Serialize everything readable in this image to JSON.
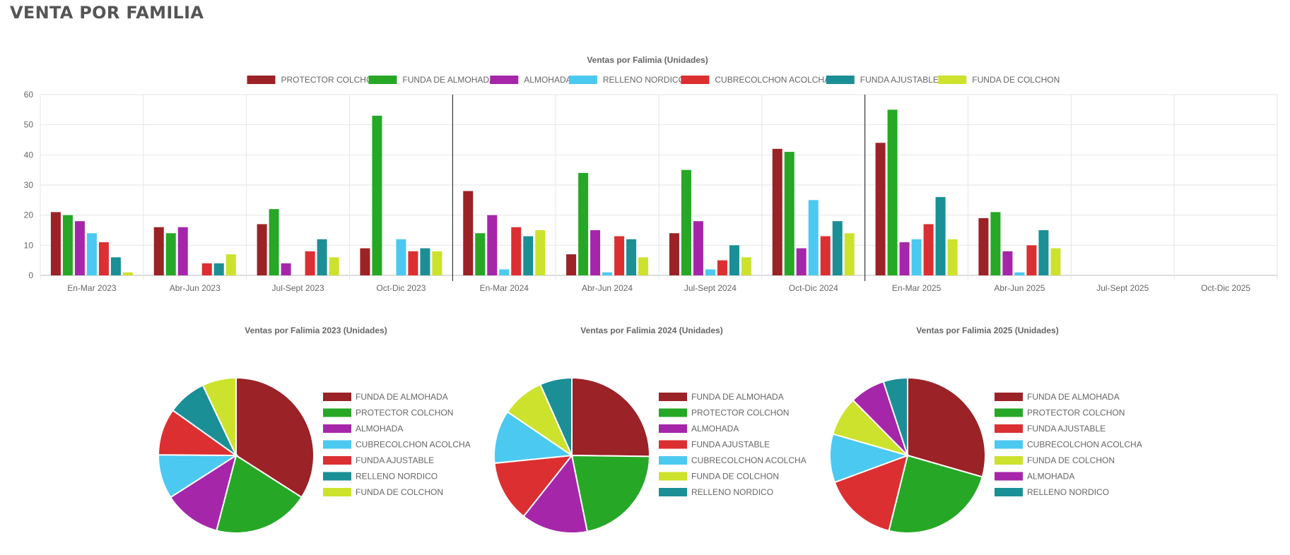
{
  "page": {
    "title": "VENTA POR FAMILIA"
  },
  "colors": {
    "PROTECTOR COLCHON": "#9b2226",
    "FUNDA DE ALMOHADA": "#26a826",
    "ALMOHADA": "#a626aa",
    "RELLENO NORDICO": "#4cc9f0",
    "CUBRECOLCHON ACOLCHADO": "#dc2f32",
    "FUNDA AJUSTABLE": "#1b8f96",
    "FUNDA DE COLCHON": "#cde22d"
  },
  "chart_data": [
    {
      "type": "bar",
      "title": "Ventas por Falimia (Unidades)",
      "categories": [
        "En-Mar 2023",
        "Abr-Jun 2023",
        "Jul-Sept 2023",
        "Oct-Dic 2023",
        "En-Mar 2024",
        "Abr-Jun 2024",
        "Jul-Sept 2024",
        "Oct-Dic 2024",
        "En-Mar 2025",
        "Abr-Jun 2025",
        "Jul-Sept 2025",
        "Oct-Dic 2025"
      ],
      "series": [
        {
          "name": "PROTECTOR COLCHON",
          "values": [
            21,
            16,
            17,
            9,
            28,
            7,
            14,
            42,
            44,
            19,
            0,
            0
          ]
        },
        {
          "name": "FUNDA DE ALMOHADA",
          "values": [
            20,
            14,
            22,
            53,
            14,
            34,
            35,
            41,
            55,
            21,
            0,
            0
          ]
        },
        {
          "name": "ALMOHADA",
          "values": [
            18,
            16,
            4,
            0,
            20,
            15,
            18,
            9,
            11,
            8,
            0,
            0
          ]
        },
        {
          "name": "RELLENO NORDICO",
          "values": [
            14,
            0,
            0,
            12,
            2,
            1,
            2,
            25,
            12,
            1,
            0,
            0
          ]
        },
        {
          "name": "CUBRECOLCHON ACOLCHADO",
          "values": [
            11,
            4,
            8,
            8,
            16,
            13,
            5,
            13,
            17,
            10,
            0,
            0
          ]
        },
        {
          "name": "FUNDA AJUSTABLE",
          "values": [
            6,
            4,
            12,
            9,
            13,
            12,
            10,
            18,
            26,
            15,
            0,
            0
          ]
        },
        {
          "name": "FUNDA DE COLCHON",
          "values": [
            1,
            7,
            6,
            8,
            15,
            6,
            6,
            14,
            12,
            9,
            0,
            0
          ]
        }
      ],
      "yticks": [
        "0",
        "10",
        "20",
        "30",
        "40",
        "50",
        "60"
      ],
      "ylim": [
        0,
        60
      ],
      "grid": true,
      "legend": "top-center"
    },
    {
      "type": "pie",
      "title": "Ventas por Falimia 2023 (Unidades)",
      "labels": [
        "FUNDA DE ALMOHADA",
        "PROTECTOR COLCHON",
        "ALMOHADA",
        "CUBRECOLCHON ACOLCHA",
        "FUNDA AJUSTABLE",
        "RELLENO NORDICO",
        "FUNDA DE COLCHON"
      ],
      "values": [
        63,
        37,
        22,
        17,
        18,
        15,
        13
      ],
      "colors": [
        "#9b2226",
        "#26a826",
        "#a626aa",
        "#4cc9f0",
        "#dc2f32",
        "#1b8f96",
        "#cde22d"
      ],
      "legend": "right"
    },
    {
      "type": "pie",
      "title": "Ventas por Falimia 2024 (Unidades)",
      "labels": [
        "FUNDA DE ALMOHADA",
        "PROTECTOR COLCHON",
        "ALMOHADA",
        "FUNDA AJUSTABLE",
        "CUBRECOLCHON ACOLCHA",
        "FUNDA DE COLCHON",
        "RELLENO NORDICO"
      ],
      "values": [
        91,
        78,
        50,
        46,
        40,
        32,
        24
      ],
      "colors": [
        "#9b2226",
        "#26a826",
        "#a626aa",
        "#dc2f32",
        "#4cc9f0",
        "#cde22d",
        "#1b8f96"
      ],
      "legend": "right"
    },
    {
      "type": "pie",
      "title": "Ventas por Falimia 2025 (Unidades)",
      "labels": [
        "FUNDA DE ALMOHADA",
        "PROTECTOR COLCHON",
        "FUNDA AJUSTABLE",
        "CUBRECOLCHON ACOLCHA",
        "FUNDA DE COLCHON",
        "ALMOHADA",
        "RELLENO NORDICO"
      ],
      "values": [
        76,
        63,
        40,
        26,
        21,
        19,
        13
      ],
      "colors": [
        "#9b2226",
        "#26a826",
        "#dc2f32",
        "#4cc9f0",
        "#cde22d",
        "#a626aa",
        "#1b8f96"
      ],
      "legend": "right"
    }
  ]
}
